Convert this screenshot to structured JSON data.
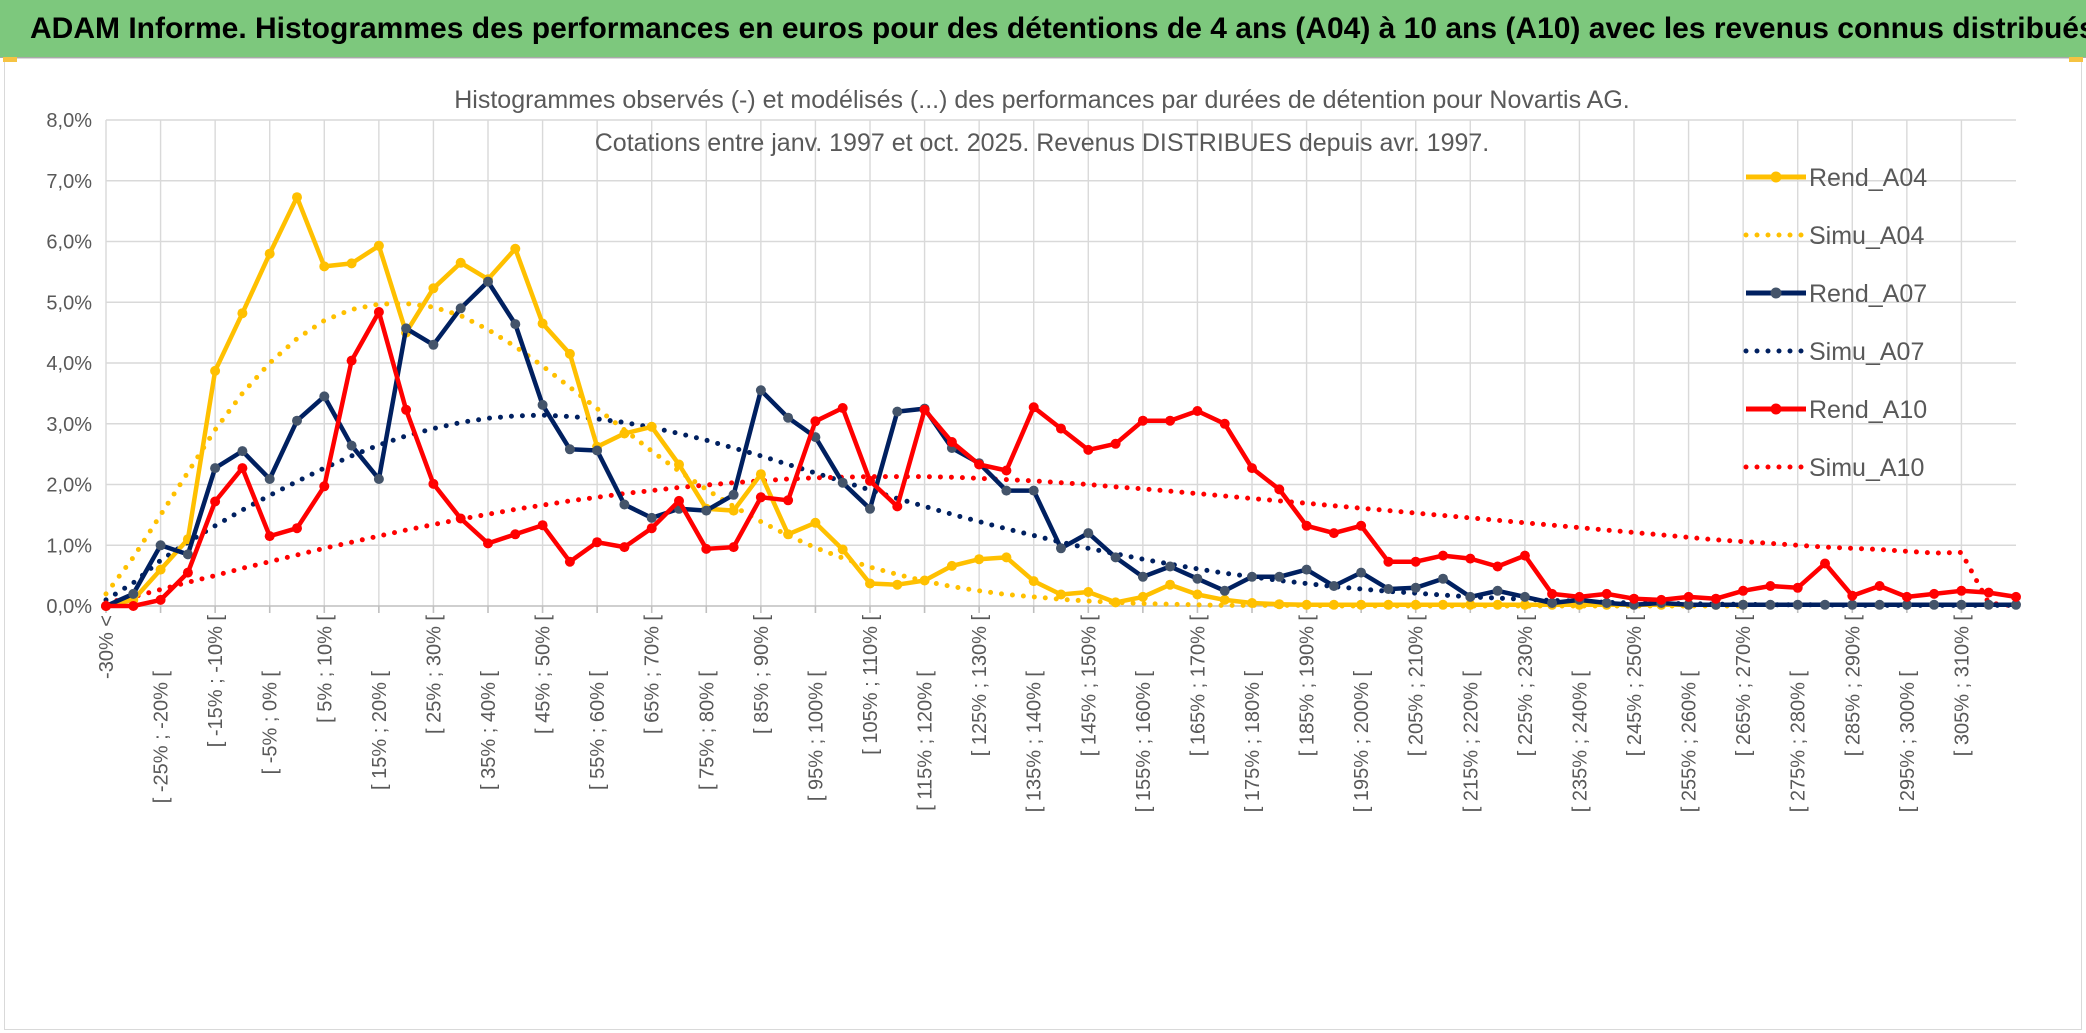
{
  "header": {
    "title": "ADAM Informe. Histogrammes des performances en euros pour des détentions de 4 ans (A04) à 10 ans (A10) avec les revenus connus distribués"
  },
  "colors": {
    "banner": "#7dc87d",
    "A04": "#FFC000",
    "A07": "#002060",
    "A07_marker": "#44546A",
    "A10": "#FF0000"
  },
  "chart_data": {
    "type": "line",
    "title_line1": "Histogrammes observés (-) et modélisés (...) des performances par durées de détention pour Novartis AG.",
    "title_line2": "Cotations entre janv. 1997 et oct. 2025. Revenus DISTRIBUES depuis avr. 1997.",
    "ylim": [
      0,
      8
    ],
    "y_unit": "%",
    "y_ticks": [
      "0,0%",
      "1,0%",
      "2,0%",
      "3,0%",
      "4,0%",
      "5,0%",
      "6,0%",
      "7,0%",
      "8,0%"
    ],
    "grid": true,
    "legend_position": "right",
    "x_labels": [
      "-30% <",
      "[ -25% ; -20% [",
      "[ -15% ; -10% [",
      "[ -5% ; 0% [",
      "[ 5% ; 10% [",
      "[ 15% ; 20% [",
      "[ 25% ; 30% [",
      "[ 35% ; 40% [",
      "[ 45% ; 50% [",
      "[ 55% ; 60% [",
      "[ 65% ; 70% [",
      "[ 75% ; 80% [",
      "[ 85% ; 90% [",
      "[ 95% ; 100% [",
      "[ 105% ; 110% [",
      "[ 115% ; 120% [",
      "[ 125% ; 130% [",
      "[ 135% ; 140% [",
      "[ 145% ; 150% [",
      "[ 155% ; 160% [",
      "[ 165% ; 170% [",
      "[ 175% ; 180% [",
      "[ 185% ; 190% [",
      "[ 195% ; 200% [",
      "[ 205% ; 210% [",
      "[ 215% ; 220% [",
      "[ 225% ; 230% [",
      "[ 235% ; 240% [",
      "[ 245% ; 250% [",
      "[ 255% ; 260% [",
      "[ 265% ; 270% [",
      "[ 275% ; 280% [",
      "[ 285% ; 290% [",
      "[ 295% ; 300% [",
      "[ 305% ; 310% ["
    ],
    "series": [
      {
        "name": "Rend_A04",
        "style": "solid",
        "color": "#FFC000",
        "marker_color": "#FFC000",
        "values": [
          0,
          0.1,
          0.6,
          1.1,
          3.87,
          4.82,
          5.8,
          6.73,
          5.59,
          5.64,
          5.93,
          4.5,
          5.23,
          5.65,
          5.38,
          5.88,
          4.65,
          4.15,
          2.62,
          2.84,
          2.95,
          2.33,
          1.6,
          1.57,
          2.17,
          1.18,
          1.37,
          0.93,
          0.37,
          0.35,
          0.42,
          0.66,
          0.77,
          0.8,
          0.41,
          0.19,
          0.23,
          0.06,
          0.15,
          0.35,
          0.19,
          0.1,
          0.05,
          0.03,
          0.02,
          0.02,
          0.02,
          0.02,
          0.02,
          0.02,
          0.02,
          0.02,
          0.02,
          0.02,
          0.02,
          0.02,
          0.02,
          0.02,
          0.02,
          0.02,
          0.02
        ]
      },
      {
        "name": "Simu_A04",
        "style": "dotted",
        "color": "#FFC000",
        "values": [
          0.2,
          0.8,
          1.5,
          2.2,
          2.9,
          3.5,
          4.0,
          4.4,
          4.7,
          4.88,
          4.97,
          4.98,
          4.92,
          4.78,
          4.55,
          4.27,
          3.95,
          3.6,
          3.25,
          2.9,
          2.55,
          2.22,
          1.92,
          1.64,
          1.39,
          1.16,
          0.96,
          0.79,
          0.64,
          0.52,
          0.41,
          0.32,
          0.25,
          0.19,
          0.15,
          0.11,
          0.08,
          0.06,
          0.04,
          0.03,
          0.02,
          0.01,
          0.01,
          0.01,
          0.01,
          0.0,
          0.0,
          0.0,
          0.0,
          0.0,
          0.0,
          0.0,
          0.0,
          0.0,
          0.0,
          0.0,
          0.0,
          0.0,
          0.0,
          0.0,
          0.0
        ]
      },
      {
        "name": "Rend_A07",
        "style": "solid",
        "color": "#002060",
        "marker_color": "#44546A",
        "values": [
          0,
          0.2,
          1.0,
          0.85,
          2.27,
          2.55,
          2.09,
          3.05,
          3.45,
          2.64,
          2.09,
          4.57,
          4.3,
          4.9,
          5.34,
          4.64,
          3.31,
          2.58,
          2.56,
          1.67,
          1.45,
          1.6,
          1.57,
          1.83,
          3.55,
          3.1,
          2.78,
          2.03,
          1.6,
          3.2,
          3.25,
          2.6,
          2.35,
          1.9,
          1.9,
          0.95,
          1.2,
          0.8,
          0.48,
          0.65,
          0.45,
          0.25,
          0.48,
          0.48,
          0.6,
          0.33,
          0.55,
          0.28,
          0.3,
          0.45,
          0.15,
          0.25,
          0.15,
          0.05,
          0.1,
          0.05,
          0.02,
          0.05,
          0.02,
          0.02,
          0.02,
          0.02,
          0.02,
          0.02,
          0.02,
          0.02,
          0.02,
          0.02,
          0.02,
          0.02,
          0.02
        ]
      },
      {
        "name": "Simu_A07",
        "style": "dotted",
        "color": "#002060",
        "values": [
          0.1,
          0.38,
          0.75,
          1.05,
          1.32,
          1.58,
          1.82,
          2.05,
          2.27,
          2.47,
          2.65,
          2.8,
          2.92,
          3.02,
          3.09,
          3.13,
          3.14,
          3.12,
          3.08,
          3.02,
          2.94,
          2.84,
          2.73,
          2.6,
          2.47,
          2.33,
          2.19,
          2.05,
          1.91,
          1.77,
          1.64,
          1.51,
          1.39,
          1.27,
          1.16,
          1.05,
          0.95,
          0.86,
          0.77,
          0.69,
          0.61,
          0.54,
          0.48,
          0.42,
          0.37,
          0.32,
          0.28,
          0.24,
          0.21,
          0.18,
          0.15,
          0.13,
          0.11,
          0.09,
          0.08,
          0.06,
          0.05,
          0.04,
          0.04,
          0.03,
          0.03,
          0.02,
          0.02,
          0.02,
          0.01,
          0.01,
          0.01,
          0.01,
          0.01,
          0.01,
          0.01
        ]
      },
      {
        "name": "Rend_A10",
        "style": "solid",
        "color": "#FF0000",
        "marker_color": "#FF0000",
        "values": [
          0,
          0,
          0.1,
          0.55,
          1.72,
          2.27,
          1.15,
          1.28,
          1.97,
          4.04,
          4.84,
          3.23,
          2.01,
          1.44,
          1.03,
          1.18,
          1.33,
          0.73,
          1.05,
          0.97,
          1.28,
          1.73,
          0.94,
          0.97,
          1.79,
          1.74,
          3.04,
          3.26,
          2.06,
          1.64,
          3.23,
          2.7,
          2.33,
          2.23,
          3.27,
          2.92,
          2.57,
          2.67,
          3.05,
          3.05,
          3.21,
          3.0,
          2.27,
          1.92,
          1.32,
          1.2,
          1.32,
          0.73,
          0.73,
          0.83,
          0.78,
          0.65,
          0.83,
          0.2,
          0.15,
          0.2,
          0.12,
          0.1,
          0.15,
          0.12,
          0.25,
          0.33,
          0.3,
          0.7,
          0.17,
          0.33,
          0.15,
          0.2,
          0.25,
          0.22,
          0.15
        ]
      },
      {
        "name": "Simu_A10",
        "style": "dotted",
        "color": "#FF0000",
        "values": [
          0.05,
          0.15,
          0.27,
          0.39,
          0.5,
          0.62,
          0.73,
          0.84,
          0.95,
          1.05,
          1.15,
          1.25,
          1.34,
          1.43,
          1.51,
          1.59,
          1.66,
          1.73,
          1.79,
          1.85,
          1.9,
          1.95,
          1.99,
          2.03,
          2.06,
          2.09,
          2.11,
          2.12,
          2.13,
          2.13,
          2.13,
          2.12,
          2.1,
          2.08,
          2.06,
          2.03,
          2.0,
          1.96,
          1.93,
          1.89,
          1.85,
          1.81,
          1.77,
          1.73,
          1.69,
          1.65,
          1.61,
          1.57,
          1.53,
          1.49,
          1.45,
          1.41,
          1.37,
          1.33,
          1.29,
          1.25,
          1.21,
          1.17,
          1.13,
          1.09,
          1.06,
          1.03,
          1.0,
          0.97,
          0.95,
          0.93,
          0.9,
          0.87,
          0.88,
          0.05,
          0.0
        ]
      }
    ]
  }
}
